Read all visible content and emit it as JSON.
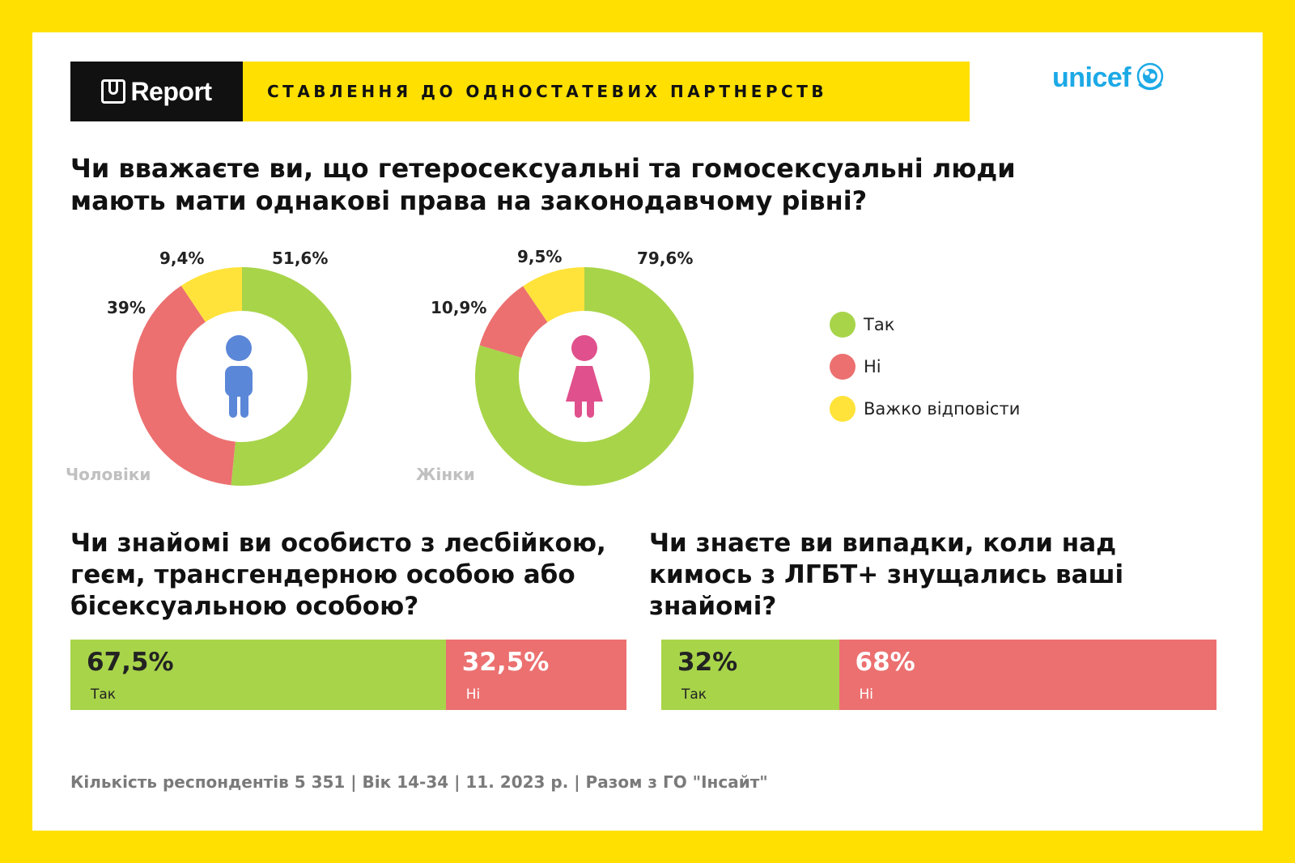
{
  "header": {
    "brand": "Report",
    "title": "СТАВЛЕННЯ ДО ОДНОСТАТЕВИХ ПАРТНЕРСТВ",
    "partner": "unicef"
  },
  "question1": "Чи вважаєте ви, що гетеросексуальні та гомосексуальні люди мають мати однакові права на законодавчому рівні?",
  "colors": {
    "yes": "#a8d44a",
    "no": "#ec7070",
    "hard": "#ffe33a",
    "male_icon": "#5b87d8",
    "female_icon": "#e0508c"
  },
  "legend": [
    {
      "label": "Так",
      "color": "#a8d44a"
    },
    {
      "label": "Ні",
      "color": "#ec7070"
    },
    {
      "label": "Важко відповісти",
      "color": "#ffe33a"
    }
  ],
  "chart_data": [
    {
      "type": "pie",
      "title": "Чоловіки",
      "categories": [
        "Так",
        "Ні",
        "Важко відповісти"
      ],
      "values": [
        51.6,
        39,
        9.4
      ],
      "labels": [
        "51,6%",
        "39%",
        "9,4%"
      ]
    },
    {
      "type": "pie",
      "title": "Жінки",
      "categories": [
        "Так",
        "Ні",
        "Важко відповісти"
      ],
      "values": [
        79.6,
        10.9,
        9.5
      ],
      "labels": [
        "79,6%",
        "10,9%",
        "9,5%"
      ]
    },
    {
      "type": "bar",
      "title": "Чи знайомі ви особисто з лесбійкою, геєм, трансгендерною особою або бісексуальною особою?",
      "categories": [
        "Так",
        "Ні"
      ],
      "values": [
        67.5,
        32.5
      ],
      "labels": [
        "67,5%",
        "32,5%"
      ]
    },
    {
      "type": "bar",
      "title": "Чи знаєте ви випадки, коли над кимось з ЛГБТ+ знущались ваші знайомі?",
      "categories": [
        "Так",
        "Ні"
      ],
      "values": [
        32,
        68
      ],
      "labels": [
        "32%",
        "68%"
      ]
    }
  ],
  "footer": "Кількість респондентів 5 351 |  Вік 14-34 | 11. 2023 р. | Разом з ГО \"Інсайт\""
}
